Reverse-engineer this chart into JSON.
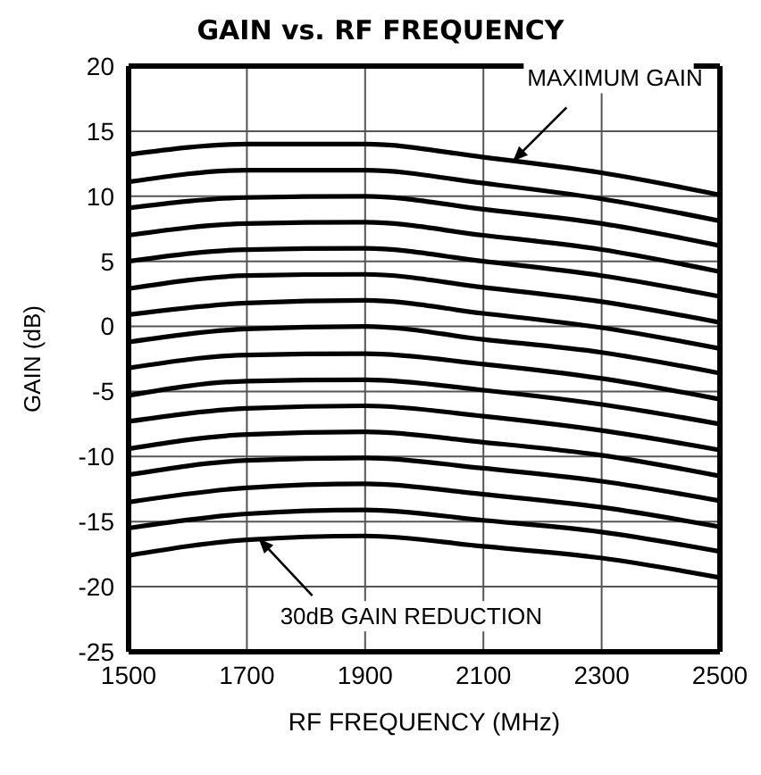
{
  "chart_data": {
    "type": "line",
    "title": "GAIN vs. RF FREQUENCY",
    "xlabel": "RF FREQUENCY (MHz)",
    "ylabel": "GAIN (dB)",
    "x": [
      1500,
      1700,
      1900,
      2100,
      2300,
      2500
    ],
    "xlim": [
      1500,
      2500
    ],
    "xticks": [
      1500,
      1700,
      1900,
      2100,
      2300,
      2500
    ],
    "ylim": [
      -25,
      20
    ],
    "yticks": [
      -25,
      -20,
      -15,
      -10,
      -5,
      0,
      5,
      10,
      15,
      20
    ],
    "grid": true,
    "marker": "none",
    "line_style": "solid",
    "annotations": [
      {
        "text": "MAXIMUM GAIN",
        "x": 2150,
        "y": 12.7
      },
      {
        "text": "30dB GAIN REDUCTION",
        "x": 1720,
        "y": -16.3
      }
    ],
    "series": [
      {
        "color": "#000000",
        "values": [
          13.2,
          14.0,
          14.0,
          13.0,
          11.8,
          10.1
        ]
      },
      {
        "color": "#000000",
        "values": [
          11.1,
          12.0,
          12.0,
          11.0,
          9.8,
          8.1
        ]
      },
      {
        "color": "#000000",
        "values": [
          9.1,
          9.9,
          10.0,
          9.0,
          7.9,
          6.2
        ]
      },
      {
        "color": "#000000",
        "values": [
          7.0,
          7.9,
          8.0,
          7.0,
          5.9,
          4.2
        ]
      },
      {
        "color": "#000000",
        "values": [
          5.0,
          5.9,
          6.0,
          5.0,
          3.9,
          2.3
        ]
      },
      {
        "color": "#000000",
        "values": [
          2.9,
          3.9,
          4.0,
          3.0,
          1.9,
          0.3
        ]
      },
      {
        "color": "#000000",
        "values": [
          0.9,
          1.8,
          2.0,
          1.0,
          -0.1,
          -1.7
        ]
      },
      {
        "color": "#000000",
        "values": [
          -1.2,
          -0.2,
          0.0,
          -1.0,
          -2.0,
          -3.6
        ]
      },
      {
        "color": "#000000",
        "values": [
          -3.2,
          -2.2,
          -2.1,
          -2.9,
          -4.0,
          -5.6
        ]
      },
      {
        "color": "#000000",
        "values": [
          -5.3,
          -4.2,
          -4.1,
          -4.9,
          -6.0,
          -7.5
        ]
      },
      {
        "color": "#000000",
        "values": [
          -7.3,
          -6.3,
          -6.1,
          -6.9,
          -8.0,
          -9.5
        ]
      },
      {
        "color": "#000000",
        "values": [
          -9.4,
          -8.3,
          -8.1,
          -8.9,
          -9.9,
          -11.5
        ]
      },
      {
        "color": "#000000",
        "values": [
          -11.4,
          -10.3,
          -10.1,
          -10.9,
          -11.9,
          -13.4
        ]
      },
      {
        "color": "#000000",
        "values": [
          -13.5,
          -12.4,
          -12.1,
          -12.9,
          -13.9,
          -15.4
        ]
      },
      {
        "color": "#000000",
        "values": [
          -15.5,
          -14.4,
          -14.1,
          -14.9,
          -15.8,
          -17.3
        ]
      },
      {
        "color": "#000000",
        "values": [
          -17.6,
          -16.4,
          -16.1,
          -16.9,
          -17.8,
          -19.3
        ]
      }
    ]
  }
}
